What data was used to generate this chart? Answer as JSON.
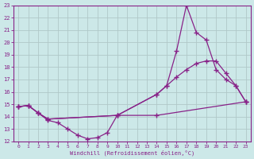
{
  "xlabel": "Windchill (Refroidissement éolien,°C)",
  "xlim": [
    -0.5,
    23.5
  ],
  "ylim": [
    12,
    23
  ],
  "xticks": [
    0,
    1,
    2,
    3,
    4,
    5,
    6,
    7,
    8,
    9,
    10,
    11,
    12,
    13,
    14,
    15,
    16,
    17,
    18,
    19,
    20,
    21,
    22,
    23
  ],
  "yticks": [
    12,
    13,
    14,
    15,
    16,
    17,
    18,
    19,
    20,
    21,
    22,
    23
  ],
  "background_color": "#cce8e8",
  "line_color": "#882288",
  "grid_color": "#b0c8c8",
  "line1_x": [
    0,
    1,
    2,
    3,
    4,
    5,
    6,
    7,
    8,
    9,
    10,
    14,
    23
  ],
  "line1_y": [
    14.8,
    14.9,
    14.3,
    13.7,
    13.5,
    13.0,
    12.5,
    12.2,
    12.3,
    12.7,
    14.1,
    14.1,
    15.2
  ],
  "line2_x": [
    0,
    1,
    2,
    3,
    10,
    14,
    15,
    16,
    17,
    18,
    19,
    20,
    21,
    22,
    23
  ],
  "line2_y": [
    14.8,
    14.9,
    14.3,
    13.8,
    14.1,
    15.8,
    16.5,
    17.2,
    17.8,
    18.3,
    18.5,
    18.5,
    17.5,
    16.5,
    15.2
  ],
  "line3_x": [
    0,
    1,
    2,
    3,
    10,
    14,
    15,
    16,
    17,
    18,
    19,
    20,
    21,
    22,
    23
  ],
  "line3_y": [
    14.8,
    14.9,
    14.3,
    13.8,
    14.1,
    15.8,
    16.5,
    19.3,
    23.0,
    20.8,
    20.2,
    17.8,
    17.0,
    16.5,
    15.2
  ]
}
